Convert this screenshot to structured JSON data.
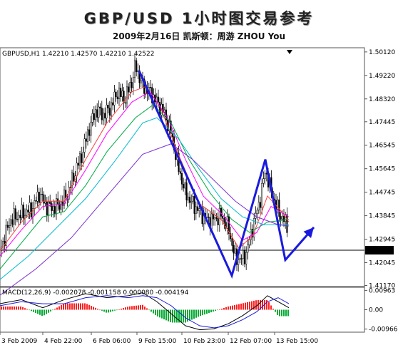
{
  "header": {
    "title": "GBP/USD 1小时图交易参考",
    "subtitle": "2009年2月16日 凯斯顿：周游 ZHOU You"
  },
  "chart_data": [
    {
      "type": "candlestick",
      "info_line": "GBPUSD,H1 1.42210 1.42570 1.42210 1.42522",
      "ylim": [
        1.4113,
        1.5028
      ],
      "y_ticks": [
        "1.50120",
        "1.49220",
        "1.48320",
        "1.47445",
        "1.46545",
        "1.45645",
        "1.44745",
        "1.43845",
        "1.42945",
        "1.42045",
        "1.41170"
      ],
      "current_price": "1.42522",
      "x_labels": [
        "3 Feb 2009",
        "4 Feb 22:00",
        "6 Feb 06:00",
        "9 Feb 15:00",
        "10 Feb 23:00",
        "12 Feb 07:00",
        "13 Feb 15:00"
      ],
      "price_path": [
        [
          0,
          1.425
        ],
        [
          15,
          1.437
        ],
        [
          30,
          1.439
        ],
        [
          45,
          1.441
        ],
        [
          55,
          1.447
        ],
        [
          65,
          1.442
        ],
        [
          75,
          1.4415
        ],
        [
          85,
          1.443
        ],
        [
          95,
          1.447
        ],
        [
          105,
          1.455
        ],
        [
          115,
          1.462
        ],
        [
          125,
          1.472
        ],
        [
          135,
          1.479
        ],
        [
          145,
          1.477
        ],
        [
          155,
          1.48
        ],
        [
          165,
          1.486
        ],
        [
          175,
          1.483
        ],
        [
          185,
          1.49
        ],
        [
          190,
          1.496
        ],
        [
          200,
          1.488
        ],
        [
          210,
          1.486
        ],
        [
          220,
          1.482
        ],
        [
          230,
          1.478
        ],
        [
          240,
          1.47
        ],
        [
          250,
          1.457
        ],
        [
          260,
          1.447
        ],
        [
          270,
          1.443
        ],
        [
          280,
          1.44
        ],
        [
          290,
          1.437
        ],
        [
          300,
          1.437
        ],
        [
          310,
          1.4385
        ],
        [
          320,
          1.434
        ],
        [
          330,
          1.422
        ],
        [
          340,
          1.422
        ],
        [
          345,
          1.424
        ],
        [
          355,
          1.435
        ],
        [
          365,
          1.445
        ],
        [
          372,
          1.456
        ],
        [
          378,
          1.45
        ],
        [
          385,
          1.444
        ],
        [
          392,
          1.439
        ],
        [
          398,
          1.437
        ],
        [
          403,
          1.434
        ]
      ],
      "moving_averages": [
        {
          "color": "#ff4040",
          "points": [
            [
              0,
              1.425
            ],
            [
              30,
              1.436
            ],
            [
              60,
              1.444
            ],
            [
              90,
              1.444
            ],
            [
              120,
              1.46
            ],
            [
              150,
              1.474
            ],
            [
              185,
              1.486
            ],
            [
              205,
              1.488
            ],
            [
              225,
              1.48
            ],
            [
              250,
              1.462
            ],
            [
              280,
              1.443
            ],
            [
              310,
              1.437
            ],
            [
              335,
              1.426
            ],
            [
              355,
              1.431
            ],
            [
              375,
              1.446
            ],
            [
              395,
              1.44
            ],
            [
              405,
              1.436
            ]
          ]
        },
        {
          "color": "#ff00ff",
          "points": [
            [
              0,
              1.423
            ],
            [
              30,
              1.433
            ],
            [
              60,
              1.442
            ],
            [
              90,
              1.443
            ],
            [
              120,
              1.456
            ],
            [
              150,
              1.47
            ],
            [
              185,
              1.482
            ],
            [
              210,
              1.486
            ],
            [
              235,
              1.476
            ],
            [
              260,
              1.46
            ],
            [
              285,
              1.446
            ],
            [
              315,
              1.438
            ],
            [
              340,
              1.429
            ],
            [
              360,
              1.432
            ],
            [
              380,
              1.442
            ],
            [
              405,
              1.438
            ]
          ]
        },
        {
          "color": "#00aa44",
          "points": [
            [
              0,
              1.418
            ],
            [
              30,
              1.428
            ],
            [
              60,
              1.438
            ],
            [
              90,
              1.44
            ],
            [
              120,
              1.45
            ],
            [
              150,
              1.463
            ],
            [
              190,
              1.476
            ],
            [
              215,
              1.481
            ],
            [
              240,
              1.474
            ],
            [
              265,
              1.46
            ],
            [
              295,
              1.447
            ],
            [
              325,
              1.437
            ],
            [
              350,
              1.432
            ],
            [
              375,
              1.436
            ],
            [
              405,
              1.437
            ]
          ]
        },
        {
          "color": "#00bbcc",
          "points": [
            [
              0,
              1.414
            ],
            [
              40,
              1.423
            ],
            [
              80,
              1.434
            ],
            [
              120,
              1.445
            ],
            [
              160,
              1.459
            ],
            [
              200,
              1.474
            ],
            [
              220,
              1.476
            ],
            [
              250,
              1.468
            ],
            [
              280,
              1.456
            ],
            [
              310,
              1.445
            ],
            [
              340,
              1.438
            ],
            [
              370,
              1.435
            ],
            [
              405,
              1.435
            ]
          ]
        },
        {
          "color": "#7a30d0",
          "points": [
            [
              0,
              1.408
            ],
            [
              50,
              1.418
            ],
            [
              100,
              1.43
            ],
            [
              150,
              1.446
            ],
            [
              200,
              1.462
            ],
            [
              240,
              1.466
            ],
            [
              270,
              1.46
            ],
            [
              300,
              1.452
            ],
            [
              330,
              1.444
            ],
            [
              360,
              1.438
            ],
            [
              390,
              1.435
            ],
            [
              405,
              1.4345
            ]
          ]
        }
      ],
      "trend_lines": [
        {
          "color": "#1a1adf",
          "points": [
            [
              195,
              1.494
            ],
            [
              325,
              1.4155
            ],
            [
              372,
              1.46
            ],
            [
              400,
              1.4215
            ],
            [
              440,
              1.434
            ]
          ],
          "arrow_end": true
        }
      ],
      "horizontal_line": {
        "value": 1.42522
      }
    },
    {
      "type": "bar",
      "info_line": "MACD(12,26,9) -0.002078 -0.001158 0.000080 -0.004194",
      "ylim": [
        -0.0112,
        0.0112
      ],
      "y_ticks": [
        "0.00963",
        "0.00",
        "-0.00966"
      ],
      "macd_line": [
        [
          0,
          0.003
        ],
        [
          30,
          0.005
        ],
        [
          60,
          0.001
        ],
        [
          90,
          0.005
        ],
        [
          120,
          0.008
        ],
        [
          150,
          0.006
        ],
        [
          180,
          0.007
        ],
        [
          200,
          0.0085
        ],
        [
          220,
          0.004
        ],
        [
          240,
          -0.002
        ],
        [
          260,
          -0.008
        ],
        [
          280,
          -0.01
        ],
        [
          300,
          -0.0095
        ],
        [
          320,
          -0.007
        ],
        [
          340,
          -0.003
        ],
        [
          360,
          0.002
        ],
        [
          375,
          0.007
        ],
        [
          385,
          0.005
        ],
        [
          405,
          0.001
        ]
      ],
      "signal_line": [
        [
          0,
          0.002
        ],
        [
          30,
          0.004
        ],
        [
          60,
          0.003
        ],
        [
          90,
          0.003
        ],
        [
          120,
          0.006
        ],
        [
          150,
          0.007
        ],
        [
          180,
          0.006
        ],
        [
          200,
          0.007
        ],
        [
          220,
          0.006
        ],
        [
          240,
          0.002
        ],
        [
          260,
          -0.004
        ],
        [
          280,
          -0.008
        ],
        [
          300,
          -0.009
        ],
        [
          320,
          -0.008
        ],
        [
          340,
          -0.005
        ],
        [
          360,
          -0.001
        ],
        [
          375,
          0.004
        ],
        [
          390,
          0.006
        ],
        [
          405,
          0.003
        ]
      ]
    }
  ]
}
